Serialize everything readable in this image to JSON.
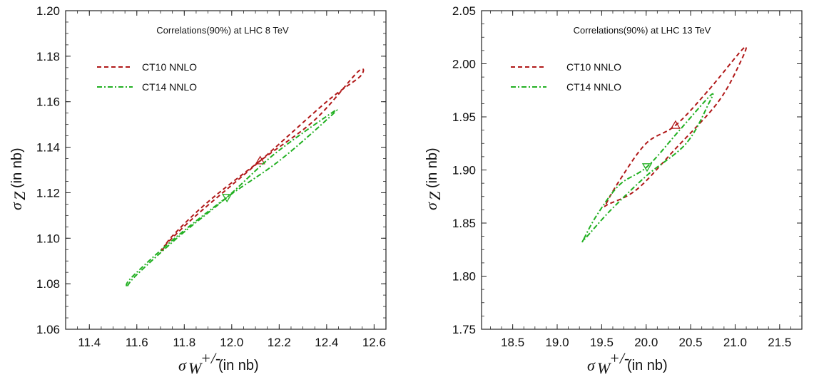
{
  "chart_data": [
    {
      "type": "scatter",
      "title": "Correlations(90%) at LHC 8 TeV",
      "xlabel_symbol": "σ",
      "xlabel_sub": "W",
      "xlabel_sup": "+/-",
      "xlabel_unit": "(in nb)",
      "ylabel_symbol": "σ",
      "ylabel_sub": "Z",
      "ylabel_unit": "(in nb)",
      "xlim": [
        11.3,
        12.65
      ],
      "ylim": [
        1.06,
        1.2
      ],
      "xticks": [
        11.4,
        11.6,
        11.8,
        12.0,
        12.2,
        12.4,
        12.6
      ],
      "xtick_labels": [
        "11.4",
        "11.6",
        "11.8",
        "12.0",
        "12.2",
        "12.4",
        "12.6"
      ],
      "yticks": [
        1.06,
        1.08,
        1.1,
        1.12,
        1.14,
        1.16,
        1.18,
        1.2
      ],
      "ytick_labels": [
        "1.06",
        "1.08",
        "1.10",
        "1.12",
        "1.14",
        "1.16",
        "1.18",
        "1.20"
      ],
      "legend_position": "top-left",
      "series": [
        {
          "name": "CT10 NNLO",
          "color": "#b01818",
          "dash": "dashed",
          "marker": "triangle-up",
          "center": [
            12.12,
            1.134
          ],
          "ellipse": [
            [
              11.71,
              1.095
            ],
            [
              11.75,
              1.101
            ],
            [
              11.9,
              1.116
            ],
            [
              12.12,
              1.134
            ],
            [
              12.35,
              1.152
            ],
            [
              12.53,
              1.173
            ],
            [
              12.54,
              1.171
            ],
            [
              12.4,
              1.16
            ],
            [
              12.12,
              1.134
            ],
            [
              11.85,
              1.11
            ],
            [
              11.72,
              1.097
            ]
          ]
        },
        {
          "name": "CT14 NNLO",
          "color": "#22b022",
          "dash": "dashdot",
          "marker": "triangle-down",
          "center": [
            11.98,
            1.118
          ],
          "ellipse": [
            [
              11.56,
              1.079
            ],
            [
              11.6,
              1.084
            ],
            [
              11.78,
              1.101
            ],
            [
              11.98,
              1.118
            ],
            [
              12.18,
              1.137
            ],
            [
              12.42,
              1.155
            ],
            [
              12.41,
              1.153
            ],
            [
              12.2,
              1.134
            ],
            [
              11.98,
              1.118
            ],
            [
              11.76,
              1.1
            ],
            [
              11.58,
              1.083
            ]
          ]
        }
      ]
    },
    {
      "type": "scatter",
      "title": "Correlations(90%) at LHC 13 TeV",
      "xlabel_symbol": "σ",
      "xlabel_sub": "W",
      "xlabel_sup": "+/-",
      "xlabel_unit": "(in nb)",
      "ylabel_symbol": "σ",
      "ylabel_sub": "Z",
      "ylabel_unit": "(in nb)",
      "xlim": [
        18.15,
        21.75
      ],
      "ylim": [
        1.75,
        2.05
      ],
      "xticks": [
        18.5,
        19.0,
        19.5,
        20.0,
        20.5,
        21.0,
        21.5
      ],
      "xtick_labels": [
        "18.5",
        "19.0",
        "19.5",
        "20.0",
        "20.5",
        "21.0",
        "21.5"
      ],
      "yticks": [
        1.75,
        1.8,
        1.85,
        1.9,
        1.95,
        2.0,
        2.05
      ],
      "ytick_labels": [
        "1.75",
        "1.80",
        "1.85",
        "1.90",
        "1.95",
        "2.00",
        "2.05"
      ],
      "legend_position": "top-left",
      "series": [
        {
          "name": "CT10 NNLO",
          "color": "#b01818",
          "dash": "dashed",
          "marker": "triangle-up",
          "center": [
            20.33,
            1.942
          ],
          "ellipse": [
            [
              19.55,
              1.868
            ],
            [
              19.7,
              1.89
            ],
            [
              20.0,
              1.925
            ],
            [
              20.33,
              1.942
            ],
            [
              20.7,
              1.975
            ],
            [
              21.1,
              2.015
            ],
            [
              21.05,
              2.0
            ],
            [
              20.8,
              1.963
            ],
            [
              20.33,
              1.92
            ],
            [
              19.9,
              1.882
            ],
            [
              19.58,
              1.868
            ]
          ]
        },
        {
          "name": "CT14 NNLO",
          "color": "#22b022",
          "dash": "dashdot",
          "marker": "triangle-down",
          "center": [
            20.01,
            1.903
          ],
          "ellipse": [
            [
              19.3,
              1.835
            ],
            [
              19.45,
              1.858
            ],
            [
              19.7,
              1.886
            ],
            [
              20.01,
              1.903
            ],
            [
              20.35,
              1.935
            ],
            [
              20.72,
              1.97
            ],
            [
              20.7,
              1.962
            ],
            [
              20.45,
              1.925
            ],
            [
              20.01,
              1.895
            ],
            [
              19.6,
              1.862
            ],
            [
              19.32,
              1.836
            ]
          ]
        }
      ]
    }
  ]
}
